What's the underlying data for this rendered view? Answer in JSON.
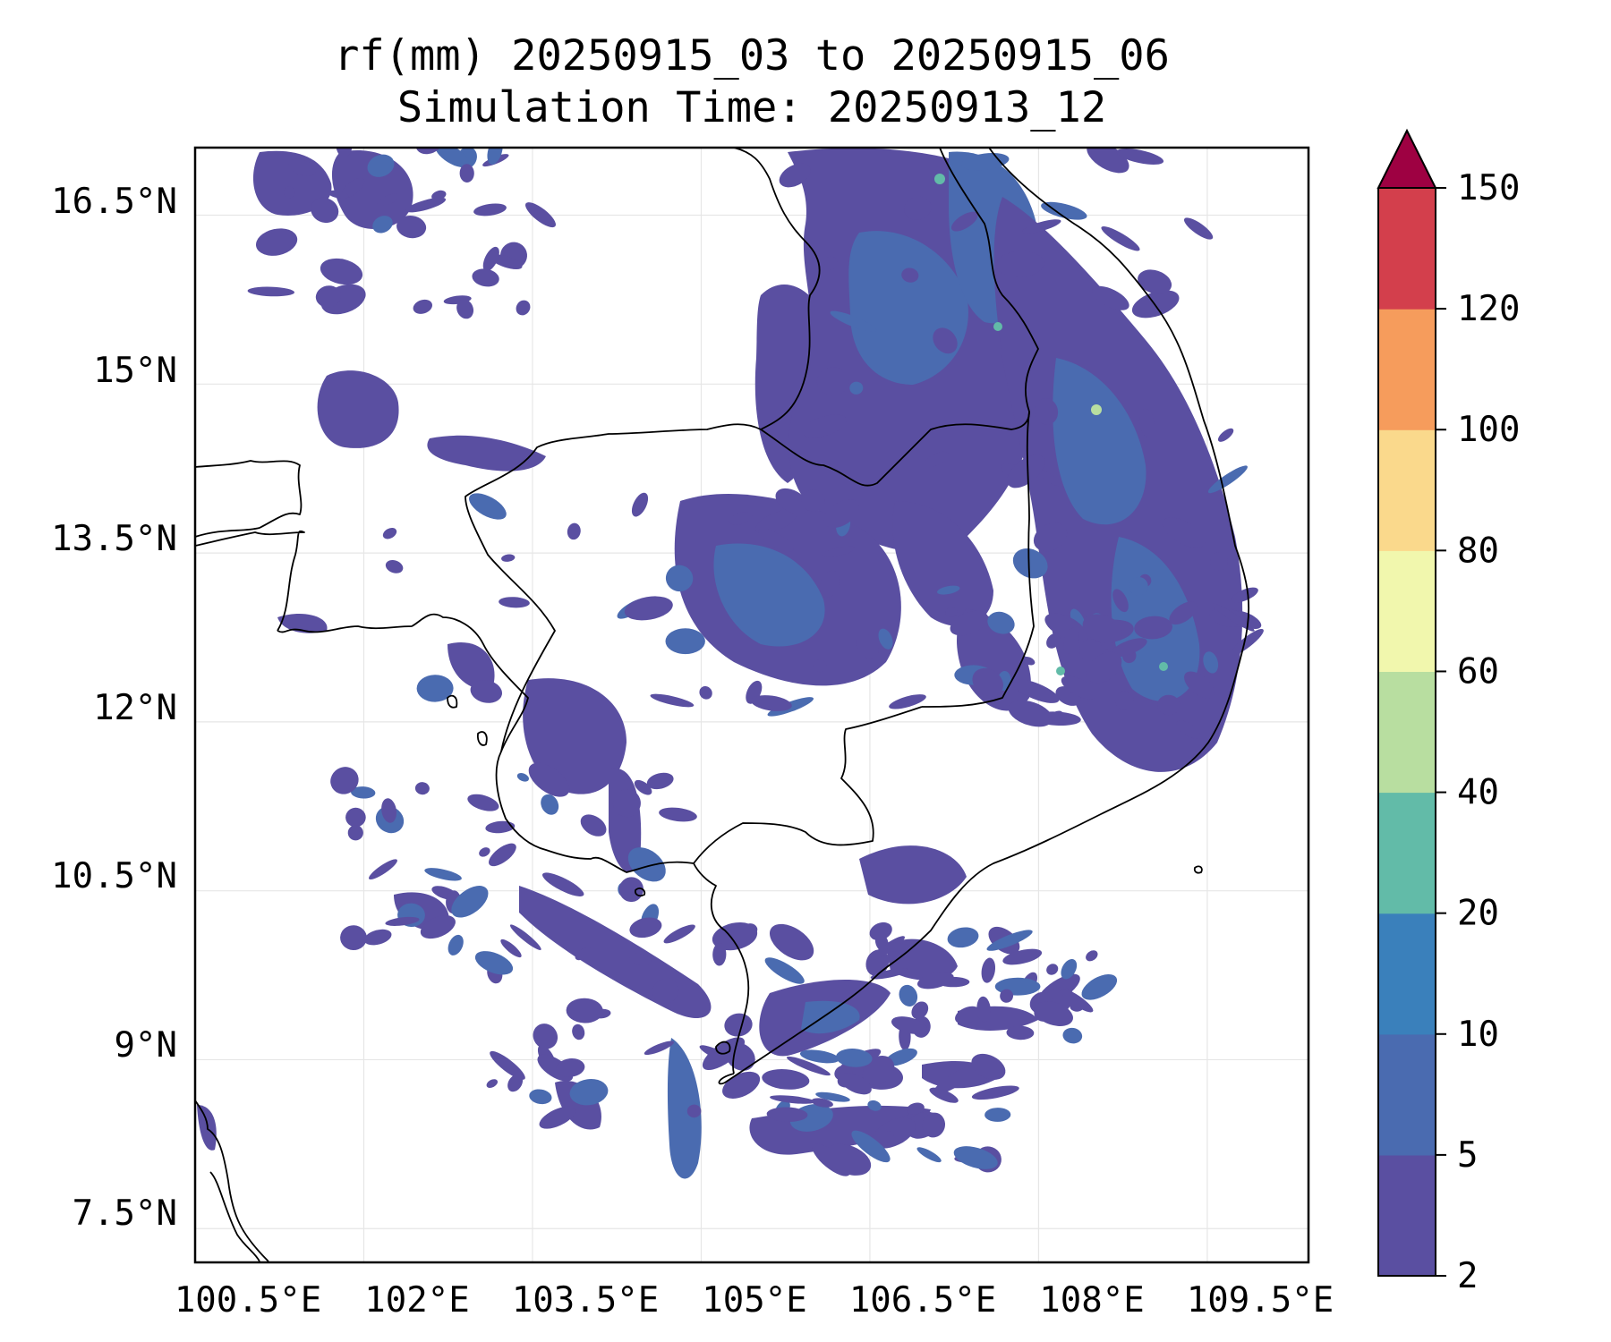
{
  "title_line1": "rf(mm) 20250915_03 to 20250915_06",
  "title_line2": "Simulation Time: 20250913_12",
  "map": {
    "lon_ticks": [
      "100.5°E",
      "102°E",
      "103.5°E",
      "105°E",
      "106.5°E",
      "108°E",
      "109.5°E"
    ],
    "lat_ticks": [
      "16.5°N",
      "15°N",
      "13.5°N",
      "12°N",
      "10.5°N",
      "9°N",
      "7.5°N"
    ],
    "lon_range": [
      100.5,
      110.4
    ],
    "lat_range": [
      7.2,
      17.1
    ],
    "grid": true,
    "region": "Southern Indochina (Thailand, Cambodia, Laos, Vietnam)"
  },
  "colorbar": {
    "levels": [
      2,
      5,
      10,
      20,
      40,
      60,
      80,
      100,
      120,
      150
    ],
    "level_labels": [
      "2",
      "5",
      "10",
      "20",
      "40",
      "60",
      "80",
      "100",
      "120",
      "150"
    ],
    "colors": [
      "#5a4fa1",
      "#4a6bb0",
      "#3a80bb",
      "#62bba8",
      "#b8dea0",
      "#f1f7ad",
      "#fad98c",
      "#f69c5c",
      "#d33f4c",
      "#9e0142"
    ],
    "extend": "max"
  },
  "chart_data": {
    "type": "heatmap",
    "variable": "rf(mm)",
    "period": "20250915_03 to 20250915_06",
    "simulation_time": "20250913_12",
    "xlim": [
      100.5,
      110.4
    ],
    "ylim": [
      7.2,
      17.1
    ],
    "xticks": [
      100.5,
      102,
      103.5,
      105,
      106.5,
      108,
      109.5
    ],
    "yticks": [
      16.5,
      15,
      13.5,
      12,
      10.5,
      9,
      7.5
    ],
    "colorbar_levels": [
      2,
      5,
      10,
      20,
      40,
      60,
      80,
      100,
      120,
      150
    ],
    "colorbar_extend": "max"
  }
}
